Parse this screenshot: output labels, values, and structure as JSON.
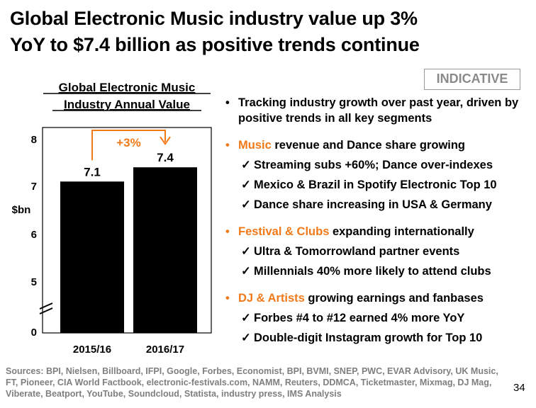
{
  "title": {
    "line1": "Global Electronic Music industry value up 3%",
    "line2": "YoY to $7.4 billion as positive trends continue"
  },
  "badge": "INDICATIVE",
  "chart_data": {
    "type": "bar",
    "title_line1": "Global Electronic Music",
    "title_line2": "Industry Annual Value",
    "ylabel": "$bn",
    "categories": [
      "2015/16",
      "2016/17"
    ],
    "values": [
      7.1,
      7.4
    ],
    "value_labels": [
      "7.1",
      "7.4"
    ],
    "y_ticks": [
      "8",
      "7",
      "6",
      "5",
      "0"
    ],
    "axis_break": true,
    "change_label": "+3%",
    "grid": false,
    "colors": {
      "bar": "#000000",
      "accent": "#f07a1a"
    }
  },
  "bullets": [
    {
      "dot": "•",
      "accent": "",
      "text": "Tracking industry growth over past year, driven by positive trends in all key segments",
      "subs": []
    },
    {
      "dot": "•",
      "accent": "Music",
      "text": " revenue and Dance share growing",
      "subs": [
        "Streaming subs +60%; Dance over-indexes",
        "Mexico & Brazil in Spotify Electronic Top 10",
        "Dance share increasing in USA & Germany"
      ]
    },
    {
      "dot": "•",
      "accent": "Festival & Clubs",
      "text": " expanding internationally",
      "subs": [
        "Ultra & Tomorrowland partner events",
        "Millennials 40% more likely to attend clubs"
      ]
    },
    {
      "dot": "•",
      "accent": "DJ & Artists",
      "text": " growing earnings and fanbases",
      "subs": [
        "Forbes #4 to #12 earned 4% more YoY",
        "Double-digit Instagram growth for Top 10"
      ]
    }
  ],
  "check_glyph": "✓",
  "sources": "Sources: BPI, Nielsen, Billboard, IFPI, Google, Forbes, Economist, BPI, BVMI, SNEP, PWC, EVAR Advisory, UK Music, FT, Pioneer, CIA World Factbook, electronic-festivals.com, NAMM, Reuters, DDMCA, Ticketmaster, Mixmag, DJ Mag, Viberate, Beatport, YouTube, Soundcloud, Statista, industry press, IMS Analysis",
  "page_number": "34"
}
